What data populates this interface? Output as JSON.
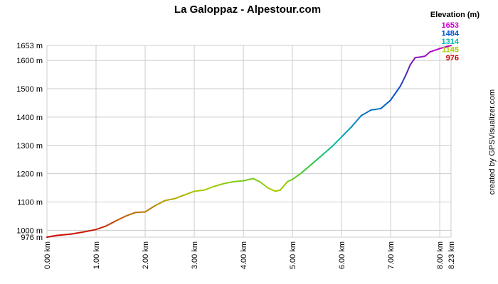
{
  "chart_data": {
    "type": "line",
    "title": "La Galoppaz - Alpestour.com",
    "xlabel": "",
    "ylabel": "",
    "xlim": [
      0,
      8.23
    ],
    "ylim": [
      976,
      1653
    ],
    "x_ticks": [
      {
        "value": 0,
        "label": "0.00 km"
      },
      {
        "value": 1,
        "label": "1.00 km"
      },
      {
        "value": 2,
        "label": "2.00 km"
      },
      {
        "value": 3,
        "label": "3.00 km"
      },
      {
        "value": 4,
        "label": "4.00 km"
      },
      {
        "value": 5,
        "label": "5.00 km"
      },
      {
        "value": 6,
        "label": "6.00 km"
      },
      {
        "value": 7,
        "label": "7.00 km"
      },
      {
        "value": 8,
        "label": "8.00 km"
      },
      {
        "value": 8.23,
        "label": "8.23 km"
      }
    ],
    "y_ticks": [
      {
        "value": 976,
        "label": "976 m"
      },
      {
        "value": 1000,
        "label": "1000 m"
      },
      {
        "value": 1100,
        "label": "1100 m"
      },
      {
        "value": 1200,
        "label": "1200 m"
      },
      {
        "value": 1300,
        "label": "1300 m"
      },
      {
        "value": 1400,
        "label": "1400 m"
      },
      {
        "value": 1500,
        "label": "1500 m"
      },
      {
        "value": 1600,
        "label": "1600 m"
      },
      {
        "value": 1653,
        "label": "1653 m"
      }
    ],
    "grid": true,
    "legend": {
      "title": "Elevation (m)",
      "placement": "top-right",
      "entries": [
        {
          "label": "1653",
          "color": "#cc00cc"
        },
        {
          "label": "1484",
          "color": "#0055cc"
        },
        {
          "label": "1314",
          "color": "#00bbaa"
        },
        {
          "label": "1145",
          "color": "#aacc00"
        },
        {
          "label": "976",
          "color": "#cc0000"
        }
      ]
    },
    "credit": "created by GPSVisualizer.com",
    "series": [
      {
        "x": [
          0,
          0.2,
          0.5,
          0.8,
          1.0,
          1.2,
          1.4,
          1.6,
          1.8,
          2.0,
          2.2,
          2.4,
          2.6,
          2.8,
          3.0,
          3.2,
          3.4,
          3.6,
          3.8,
          4.0,
          4.2,
          4.35,
          4.5,
          4.65,
          4.75,
          4.9,
          5.0,
          5.2,
          5.4,
          5.6,
          5.8,
          6.0,
          6.2,
          6.4,
          6.6,
          6.8,
          7.0,
          7.2,
          7.3,
          7.4,
          7.5,
          7.6,
          7.7,
          7.8,
          8.0,
          8.23
        ],
        "y": [
          976,
          982,
          987,
          996,
          1003,
          1015,
          1033,
          1050,
          1063,
          1065,
          1087,
          1105,
          1112,
          1125,
          1138,
          1142,
          1155,
          1165,
          1172,
          1175,
          1183,
          1170,
          1150,
          1138,
          1142,
          1172,
          1180,
          1205,
          1235,
          1265,
          1295,
          1330,
          1365,
          1405,
          1425,
          1430,
          1460,
          1510,
          1545,
          1585,
          1610,
          1612,
          1615,
          1630,
          1642,
          1653
        ]
      }
    ]
  }
}
